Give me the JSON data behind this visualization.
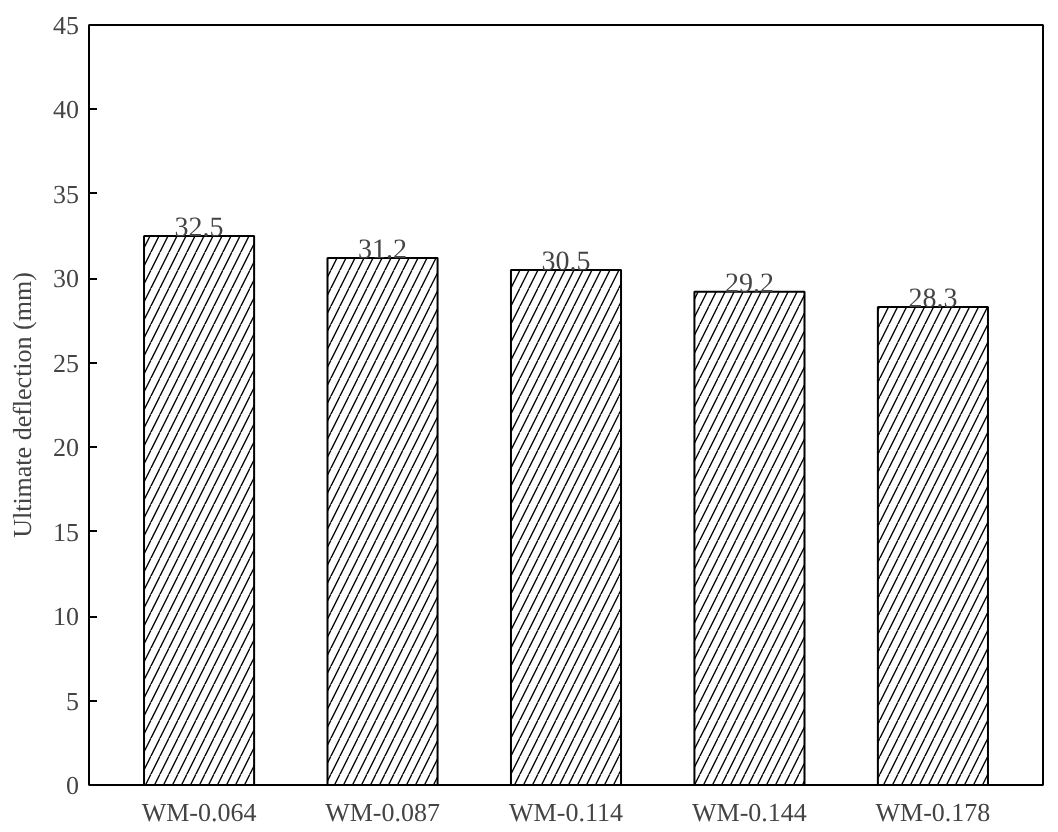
{
  "chart_data": {
    "type": "bar",
    "ylabel": "Ultimate deflection (mm)",
    "categories": [
      "WM-0.064",
      "WM-0.087",
      "WM-0.114",
      "WM-0.144",
      "WM-0.178"
    ],
    "values": [
      32.5,
      31.2,
      30.5,
      29.2,
      28.3
    ],
    "color": "#ffffff",
    "ylim": [
      0,
      45
    ],
    "yticks": [
      0,
      5,
      10,
      15,
      20,
      25,
      30,
      35,
      40,
      45
    ],
    "data_labels": true,
    "grid": false
  }
}
